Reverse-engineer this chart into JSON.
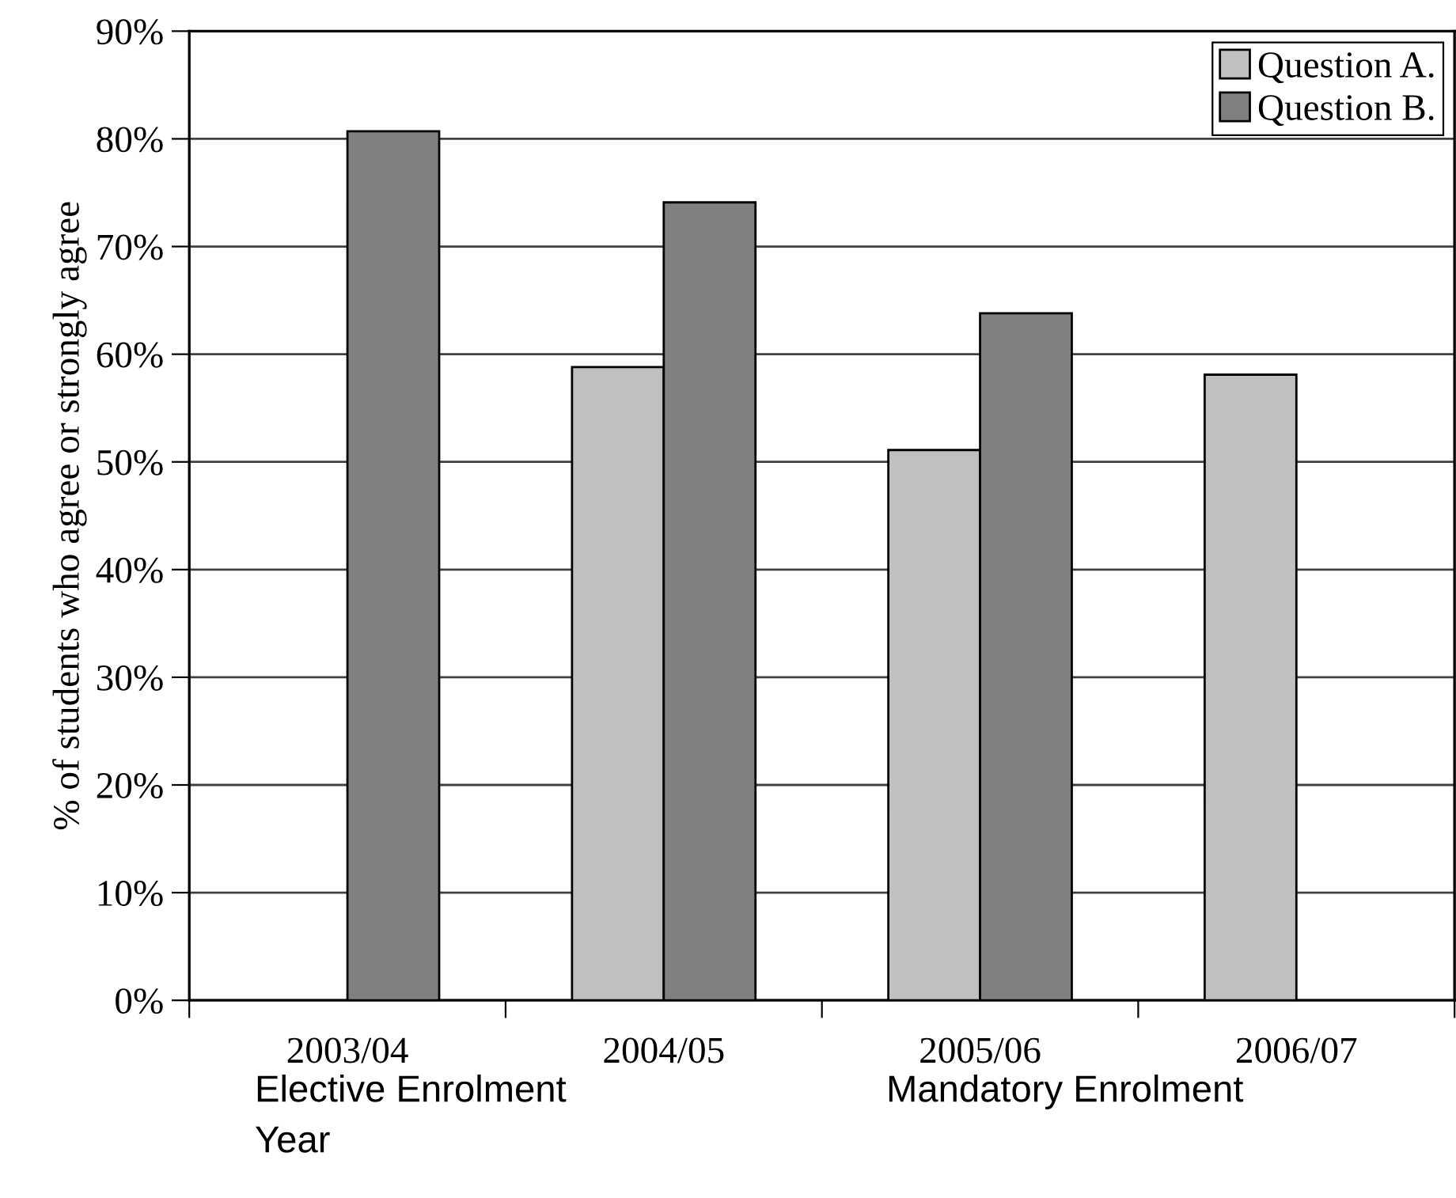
{
  "chart_data": {
    "type": "bar",
    "ylabel": "% of students who agree or strongly agree",
    "xlabel": "Year",
    "categories": [
      "2003/04",
      "2004/05",
      "2005/06",
      "2006/07"
    ],
    "series": [
      {
        "name": "Question A.",
        "color": "#c0c0c0",
        "values": [
          null,
          58.8,
          51.1,
          58.1
        ]
      },
      {
        "name": "Question B.",
        "color": "#808080",
        "values": [
          80.7,
          74.1,
          63.8,
          null
        ]
      }
    ],
    "ylim": [
      0,
      90
    ],
    "yticks": [
      {
        "value": 0,
        "label": "0%"
      },
      {
        "value": 10,
        "label": "10%"
      },
      {
        "value": 20,
        "label": "20%"
      },
      {
        "value": 30,
        "label": "30%"
      },
      {
        "value": 40,
        "label": "40%"
      },
      {
        "value": 50,
        "label": "50%"
      },
      {
        "value": 60,
        "label": "60%"
      },
      {
        "value": 70,
        "label": "70%"
      },
      {
        "value": 80,
        "label": "80%"
      },
      {
        "value": 90,
        "label": "90%"
      }
    ],
    "grid": "y",
    "legend": "top right",
    "annotations": [
      "Elective Enrolment",
      "Mandatory Enrolment"
    ]
  }
}
